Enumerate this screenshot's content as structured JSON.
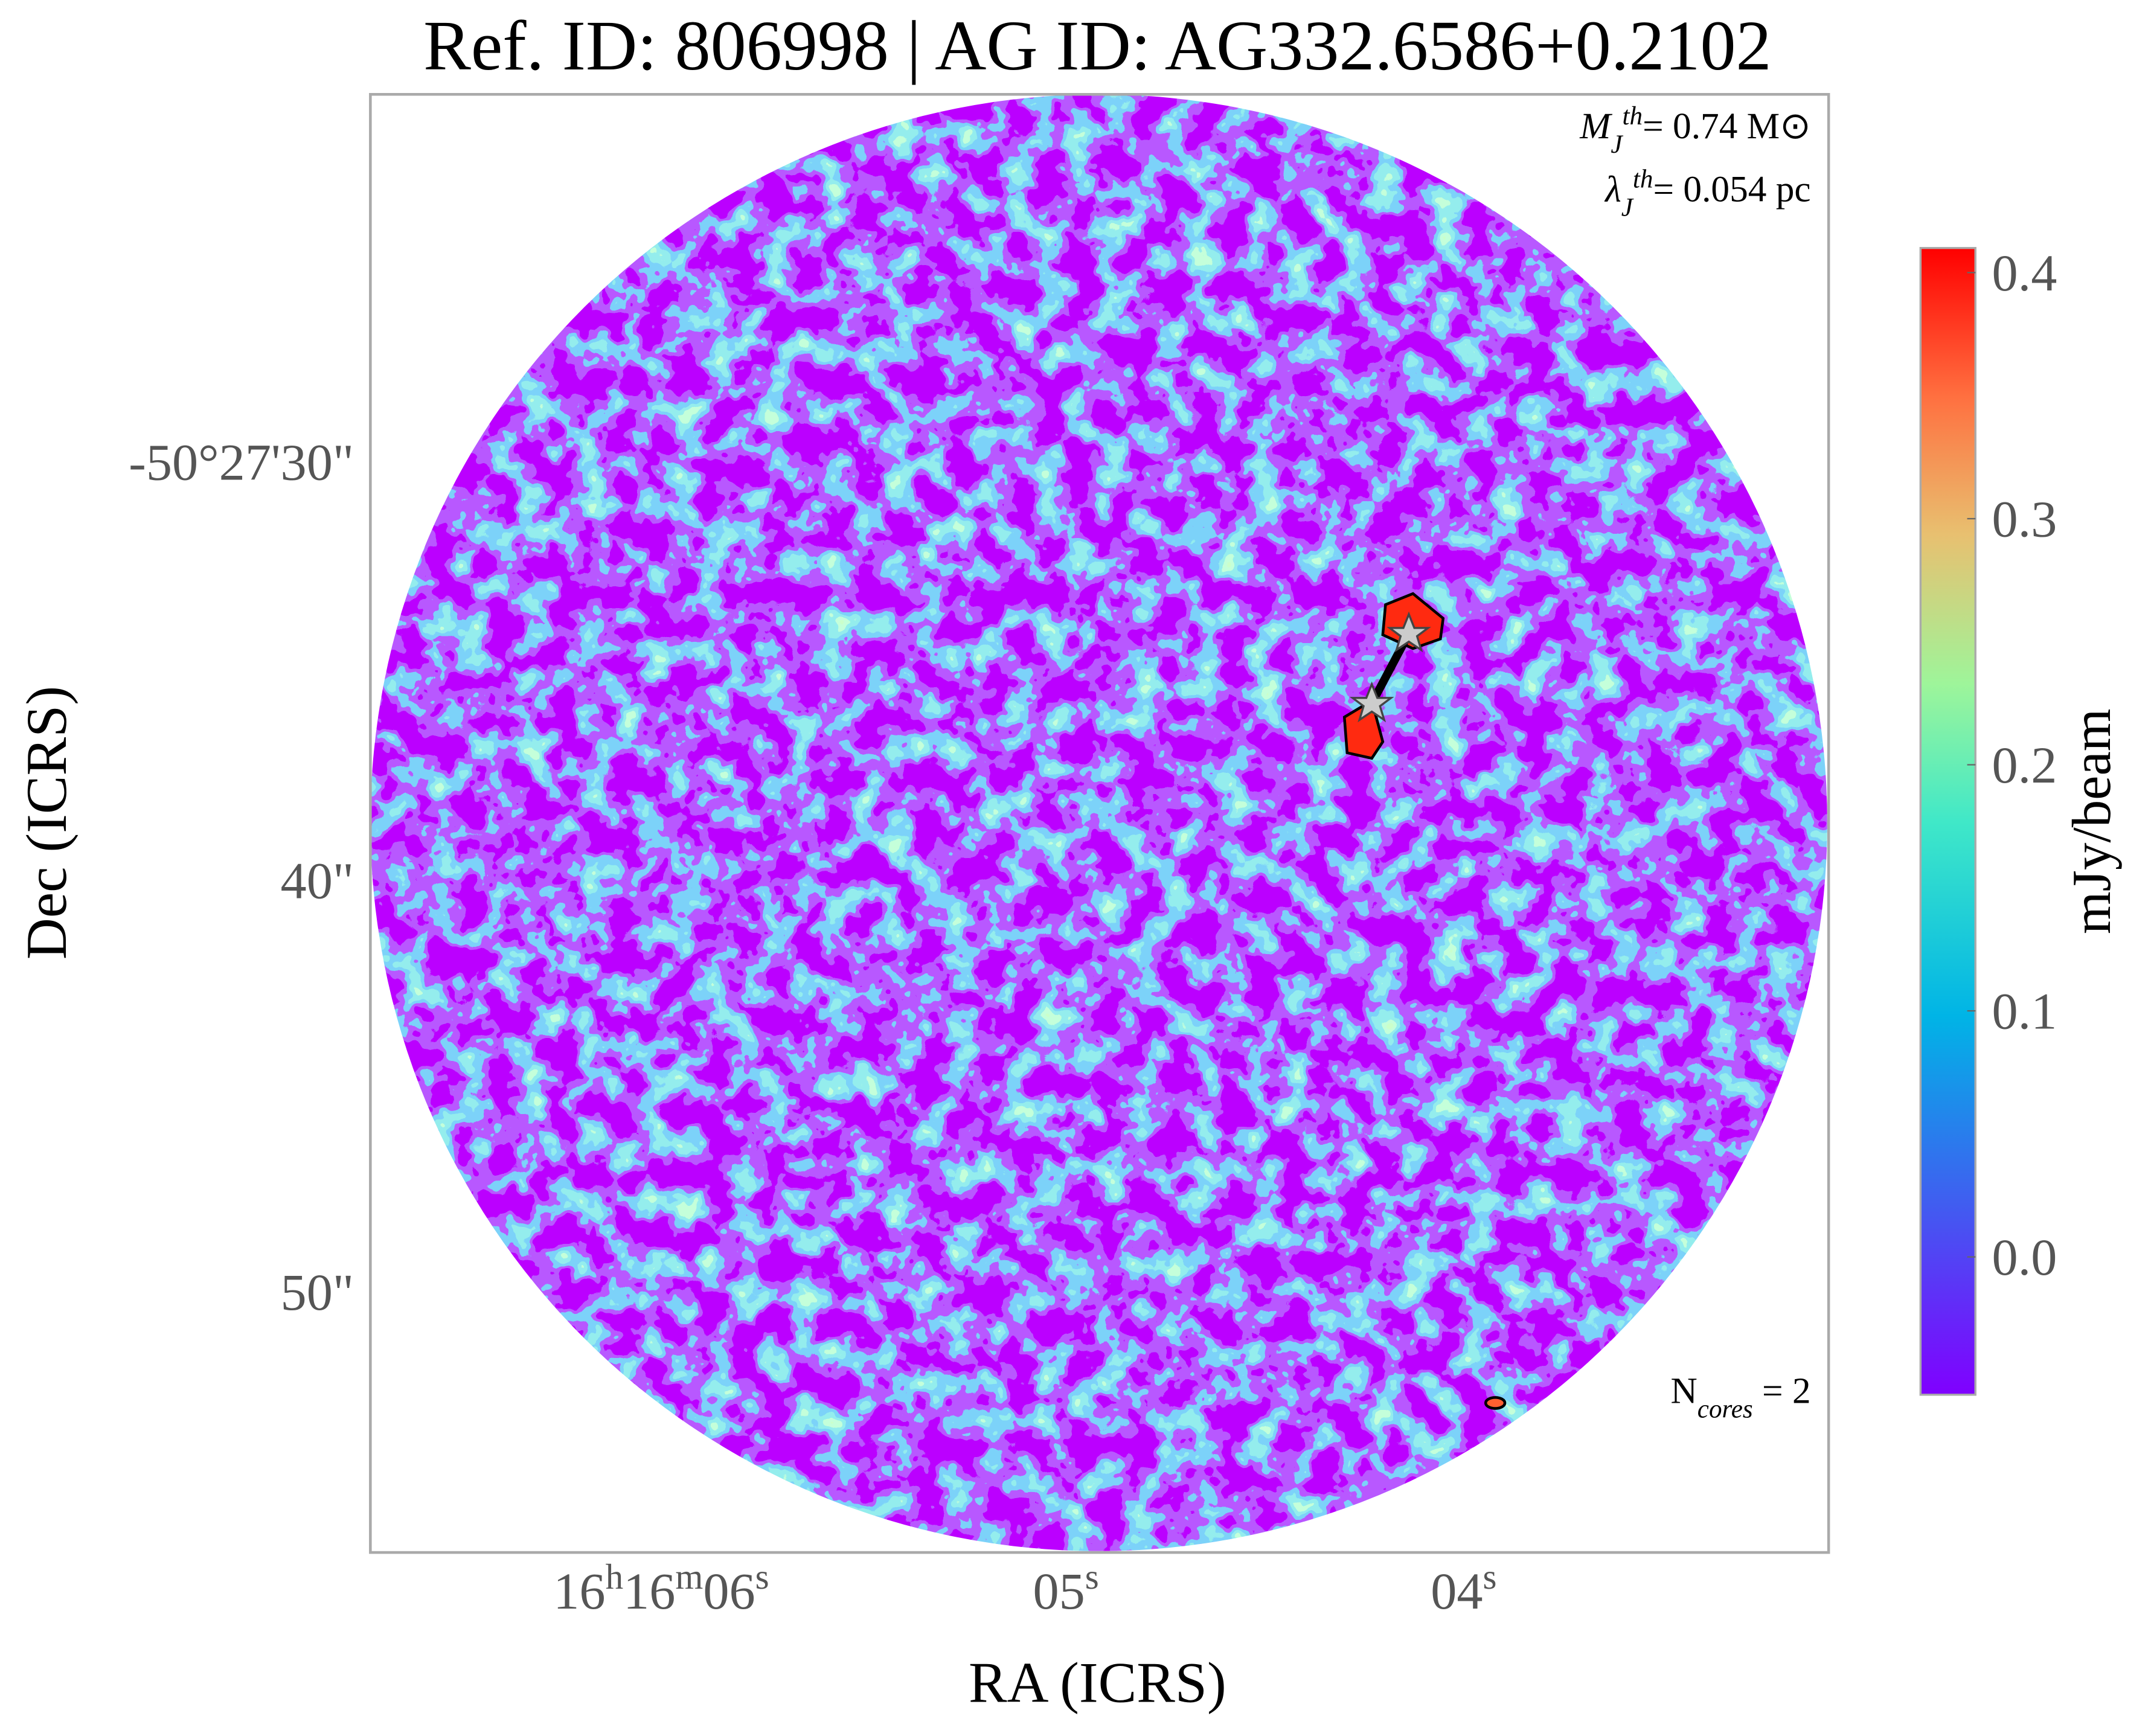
{
  "chart_data": {
    "type": "image",
    "title": "Ref. ID: 806998 | AG ID: AG332.6586+0.2102",
    "xlabel": "RA (ICRS)",
    "ylabel": "Dec (ICRS)",
    "xtick_labels": [
      "16h16m06s",
      "05s",
      "04s"
    ],
    "ytick_labels": [
      "-50°27'30\"",
      "40\"",
      "50\""
    ],
    "annotations": {
      "mass_symbol": "M",
      "mass_sub": "J",
      "mass_sup": "th",
      "mass_value": "= 0.74 M⊙",
      "length_symbol": "λ",
      "length_sub": "J",
      "length_sup": "th",
      "length_value": "= 0.054 pc",
      "cores_symbol": "N",
      "cores_sub": "cores",
      "cores_value": " = 2"
    },
    "colorbar": {
      "label": "mJy/beam",
      "lim": [
        -0.056,
        0.41
      ],
      "ticks": [
        {
          "value": 0,
          "label": "0.0"
        },
        0.1,
        0.2,
        0.3,
        0.4
      ]
    }
  }
}
